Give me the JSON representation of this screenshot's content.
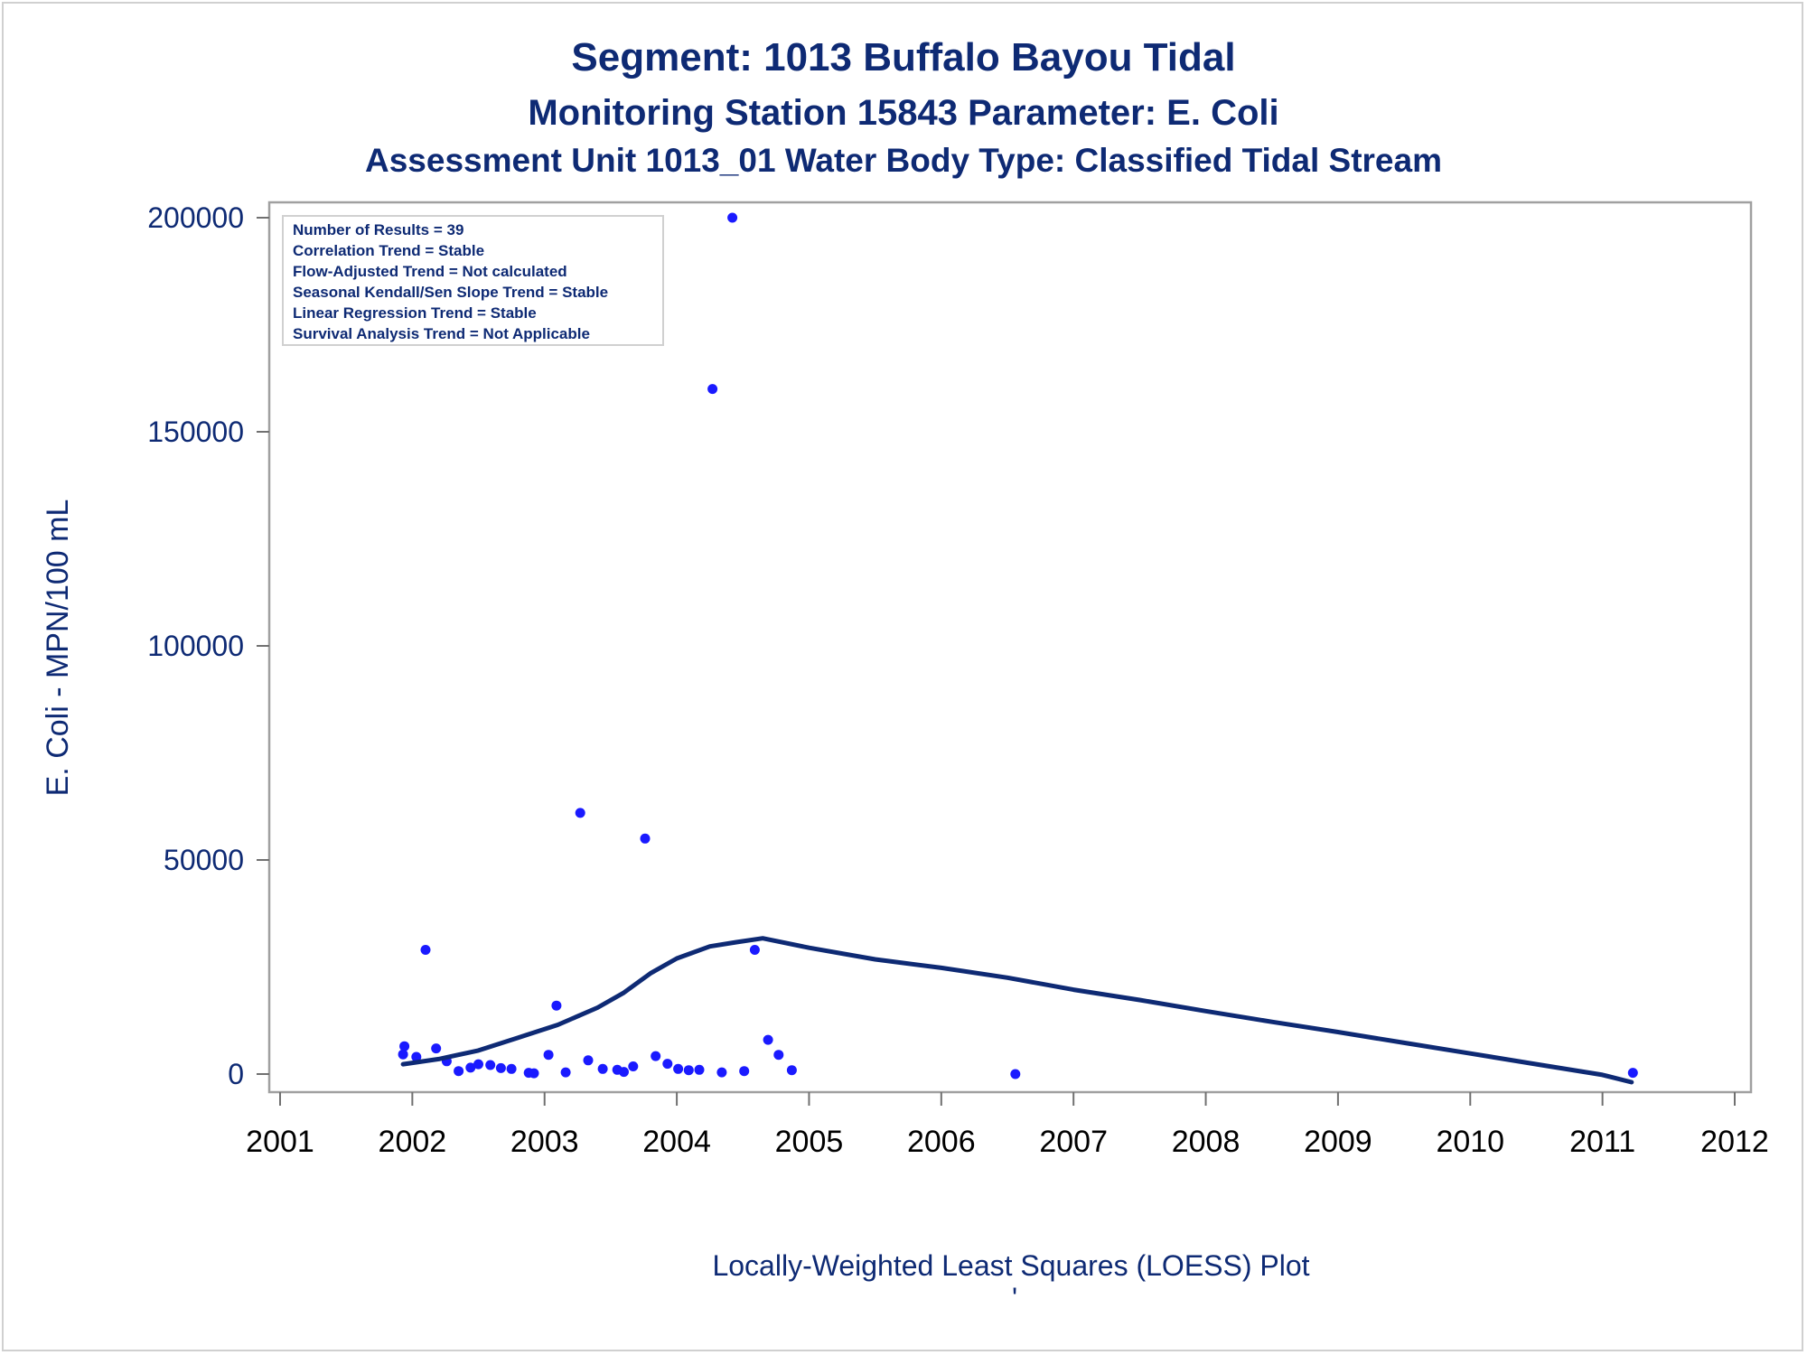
{
  "chart_data": {
    "type": "scatter",
    "title": "Segment: 1013  Buffalo Bayou Tidal",
    "subtitle1": "Monitoring Station 15843 Parameter: E. Coli",
    "subtitle2": "Assessment Unit 1013_01   Water Body Type: Classified Tidal Stream",
    "ylabel": "E. Coli - MPN/100 mL",
    "xlabel": "",
    "footer": "Locally-Weighted Least Squares (LOESS) Plot",
    "footer_mark": "'",
    "xlim": [
      2001,
      2012
    ],
    "ylim": [
      0,
      200000
    ],
    "x_ticks": [
      2001,
      2002,
      2003,
      2004,
      2005,
      2006,
      2007,
      2008,
      2009,
      2010,
      2011,
      2012
    ],
    "y_ticks": [
      0,
      50000,
      100000,
      150000,
      200000
    ],
    "grid": false,
    "stats_box": [
      "Number of Results = 39",
      "Correlation Trend = Stable",
      "Flow-Adjusted Trend = Not calculated",
      "Seasonal Kendall/Sen Slope Trend = Stable",
      "Linear Regression Trend = Stable",
      "Survival Analysis Trend = Not Applicable"
    ],
    "stats_box_placement": "top-left",
    "point_color": "#1a1aff",
    "line_color": "#0e2a74",
    "series": [
      {
        "kind": "points",
        "points": [
          [
            2001.93,
            4600
          ],
          [
            2001.94,
            6500
          ],
          [
            2002.03,
            4000
          ],
          [
            2002.1,
            29000
          ],
          [
            2002.18,
            6000
          ],
          [
            2002.26,
            3000
          ],
          [
            2002.35,
            700
          ],
          [
            2002.44,
            1500
          ],
          [
            2002.5,
            2300
          ],
          [
            2002.59,
            2100
          ],
          [
            2002.67,
            1400
          ],
          [
            2002.75,
            1200
          ],
          [
            2002.88,
            300
          ],
          [
            2002.92,
            200
          ],
          [
            2003.03,
            4500
          ],
          [
            2003.09,
            16000
          ],
          [
            2003.16,
            400
          ],
          [
            2003.27,
            61000
          ],
          [
            2003.33,
            3200
          ],
          [
            2003.44,
            1200
          ],
          [
            2003.55,
            1000
          ],
          [
            2003.6,
            500
          ],
          [
            2003.67,
            1800
          ],
          [
            2003.76,
            55000
          ],
          [
            2003.84,
            4200
          ],
          [
            2003.93,
            2400
          ],
          [
            2004.01,
            1200
          ],
          [
            2004.09,
            900
          ],
          [
            2004.17,
            1000
          ],
          [
            2004.27,
            160000
          ],
          [
            2004.34,
            400
          ],
          [
            2004.42,
            200000
          ],
          [
            2004.51,
            700
          ],
          [
            2004.59,
            29000
          ],
          [
            2004.69,
            8000
          ],
          [
            2004.77,
            4500
          ],
          [
            2004.87,
            900
          ],
          [
            2006.56,
            0
          ],
          [
            2011.23,
            300
          ]
        ]
      },
      {
        "kind": "line",
        "points": [
          [
            2001.93,
            2300
          ],
          [
            2002.2,
            3500
          ],
          [
            2002.5,
            5500
          ],
          [
            2002.8,
            8500
          ],
          [
            2003.1,
            11500
          ],
          [
            2003.4,
            15500
          ],
          [
            2003.6,
            19000
          ],
          [
            2003.8,
            23500
          ],
          [
            2004.0,
            27000
          ],
          [
            2004.25,
            29800
          ],
          [
            2004.45,
            30800
          ],
          [
            2004.65,
            31700
          ],
          [
            2005.0,
            29500
          ],
          [
            2005.5,
            26800
          ],
          [
            2006.0,
            24800
          ],
          [
            2006.5,
            22500
          ],
          [
            2007.0,
            19700
          ],
          [
            2007.5,
            17300
          ],
          [
            2008.0,
            14700
          ],
          [
            2008.5,
            12200
          ],
          [
            2009.0,
            9800
          ],
          [
            2009.5,
            7300
          ],
          [
            2010.0,
            4800
          ],
          [
            2010.5,
            2300
          ],
          [
            2011.0,
            -200
          ],
          [
            2011.22,
            -1900
          ]
        ]
      }
    ]
  }
}
